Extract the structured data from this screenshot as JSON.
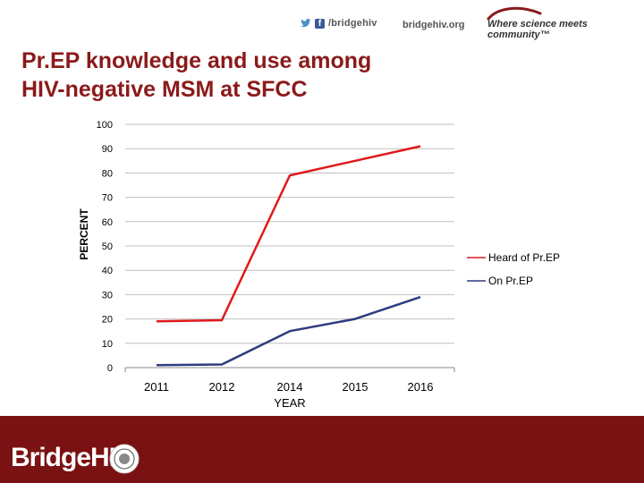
{
  "header": {
    "social_handle": "/bridgehiv",
    "url": "bridgehiv.org",
    "tagline": "Where science meets community™"
  },
  "title": {
    "line1": "Pr.EP knowledge and use among",
    "line2": "HIV-negative MSM at SFCC"
  },
  "chart_data": {
    "type": "line",
    "title": "Pr.EP knowledge and use among HIV-negative MSM at SFCC",
    "xlabel": "YEAR",
    "ylabel": "PERCENT",
    "ylim": [
      0,
      100
    ],
    "yticks": [
      0,
      10,
      20,
      30,
      40,
      50,
      60,
      70,
      80,
      90,
      100
    ],
    "categories": [
      "2011",
      "2012",
      "2014",
      "2015",
      "2016"
    ],
    "legend_position": "right",
    "grid": true,
    "series": [
      {
        "name": "Heard of Pr.EP",
        "color": "#e0191b",
        "values": [
          19,
          19.5,
          79,
          85,
          91
        ]
      },
      {
        "name": "On Pr.EP",
        "color": "#2e3b80",
        "values": [
          1,
          1.3,
          15,
          20,
          29
        ]
      }
    ]
  },
  "footer": {
    "brand": "BridgeHIV"
  },
  "colors": {
    "title": "#8b1a1a",
    "footer": "#7a1113"
  }
}
